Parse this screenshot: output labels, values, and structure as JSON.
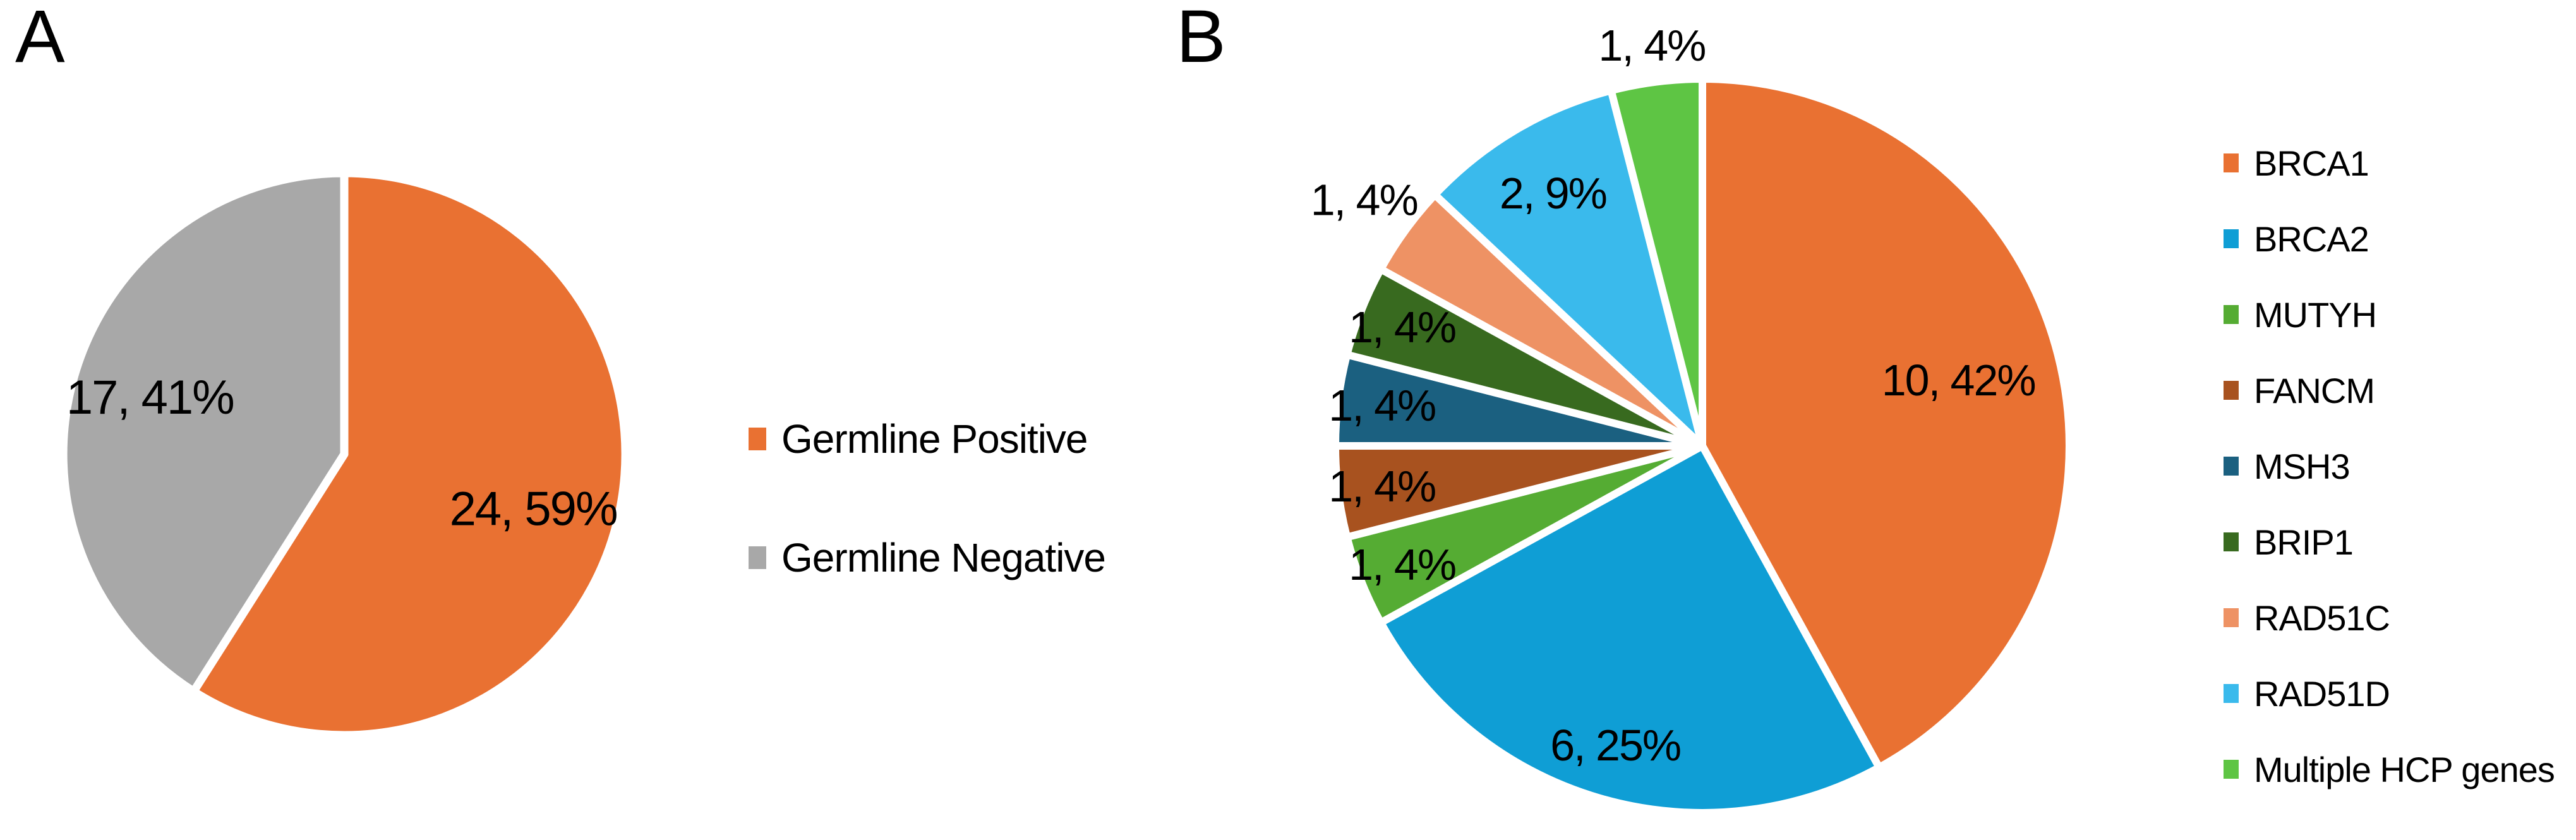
{
  "panels": {
    "a": {
      "letter": "A"
    },
    "b": {
      "letter": "B"
    }
  },
  "colors": {
    "background": "#FFFFFF",
    "data_label": "#000000",
    "slice_border": "#FFFFFF"
  },
  "chart_data": [
    {
      "type": "pie",
      "panel": "A",
      "direction": "clockwise",
      "start_angle_deg": 0,
      "legend_position": "right-middle",
      "slices": [
        {
          "name": "Germline Positive",
          "value": 24,
          "pct": 59,
          "data_label": "24, 59%",
          "color": "#E97132",
          "label_r": 0.7,
          "label_outside": false
        },
        {
          "name": "Germline Negative",
          "value": 17,
          "pct": 41,
          "data_label": "17, 41%",
          "color": "#A8A8A8",
          "label_r": 0.72,
          "label_outside": false
        }
      ],
      "legend": [
        {
          "label": "Germline Positive",
          "color": "#E97132"
        },
        {
          "label": "Germline Negative",
          "color": "#A8A8A8"
        }
      ]
    },
    {
      "type": "pie",
      "panel": "B",
      "direction": "clockwise",
      "start_angle_deg": 0,
      "legend_position": "right-middle",
      "slices": [
        {
          "name": "BRCA1",
          "value": 10,
          "pct": 42,
          "data_label": "10, 42%",
          "color": "#E97132",
          "label_r": 0.72,
          "label_outside": false
        },
        {
          "name": "BRCA2",
          "value": 6,
          "pct": 25,
          "data_label": "6, 25%",
          "color": "#0F9ED5",
          "label_r": 0.85,
          "label_outside": false
        },
        {
          "name": "MUTYH",
          "value": 1,
          "pct": 4,
          "data_label": "1, 4%",
          "color": "#55AC33",
          "label_r": 0.88,
          "label_outside": false
        },
        {
          "name": "FANCM",
          "value": 1,
          "pct": 4,
          "data_label": "1, 4%",
          "color": "#A8521F",
          "label_r": 0.88,
          "label_outside": false
        },
        {
          "name": "MSH3",
          "value": 1,
          "pct": 4,
          "data_label": "1, 4%",
          "color": "#1B6080",
          "label_r": 0.88,
          "label_outside": false
        },
        {
          "name": "BRIP1",
          "value": 1,
          "pct": 4,
          "data_label": "1, 4%",
          "color": "#386A1F",
          "label_r": 0.88,
          "label_outside": false
        },
        {
          "name": "RAD51C",
          "value": 1,
          "pct": 4,
          "data_label": "1, 4%",
          "color": "#EE9264",
          "label_r": 1.14,
          "label_outside": true
        },
        {
          "name": "RAD51D",
          "value": 2,
          "pct": 9,
          "data_label": "2, 9%",
          "color": "#3ABAEC",
          "label_r": 0.8,
          "label_outside": false
        },
        {
          "name": "Multiple HCP genes",
          "value": 1,
          "pct": 4,
          "data_label": "1, 4%",
          "color": "#5EC544",
          "label_r": 1.1,
          "label_outside": true
        }
      ],
      "legend": [
        {
          "label": "BRCA1",
          "color": "#E97132"
        },
        {
          "label": "BRCA2",
          "color": "#0F9ED5"
        },
        {
          "label": "MUTYH",
          "color": "#55AC33"
        },
        {
          "label": "FANCM",
          "color": "#A8521F"
        },
        {
          "label": "MSH3",
          "color": "#1B6080"
        },
        {
          "label": "BRIP1",
          "color": "#386A1F"
        },
        {
          "label": "RAD51C",
          "color": "#EE9264"
        },
        {
          "label": "RAD51D",
          "color": "#3ABAEC"
        },
        {
          "label": "Multiple HCP genes",
          "color": "#5EC544"
        }
      ]
    }
  ]
}
